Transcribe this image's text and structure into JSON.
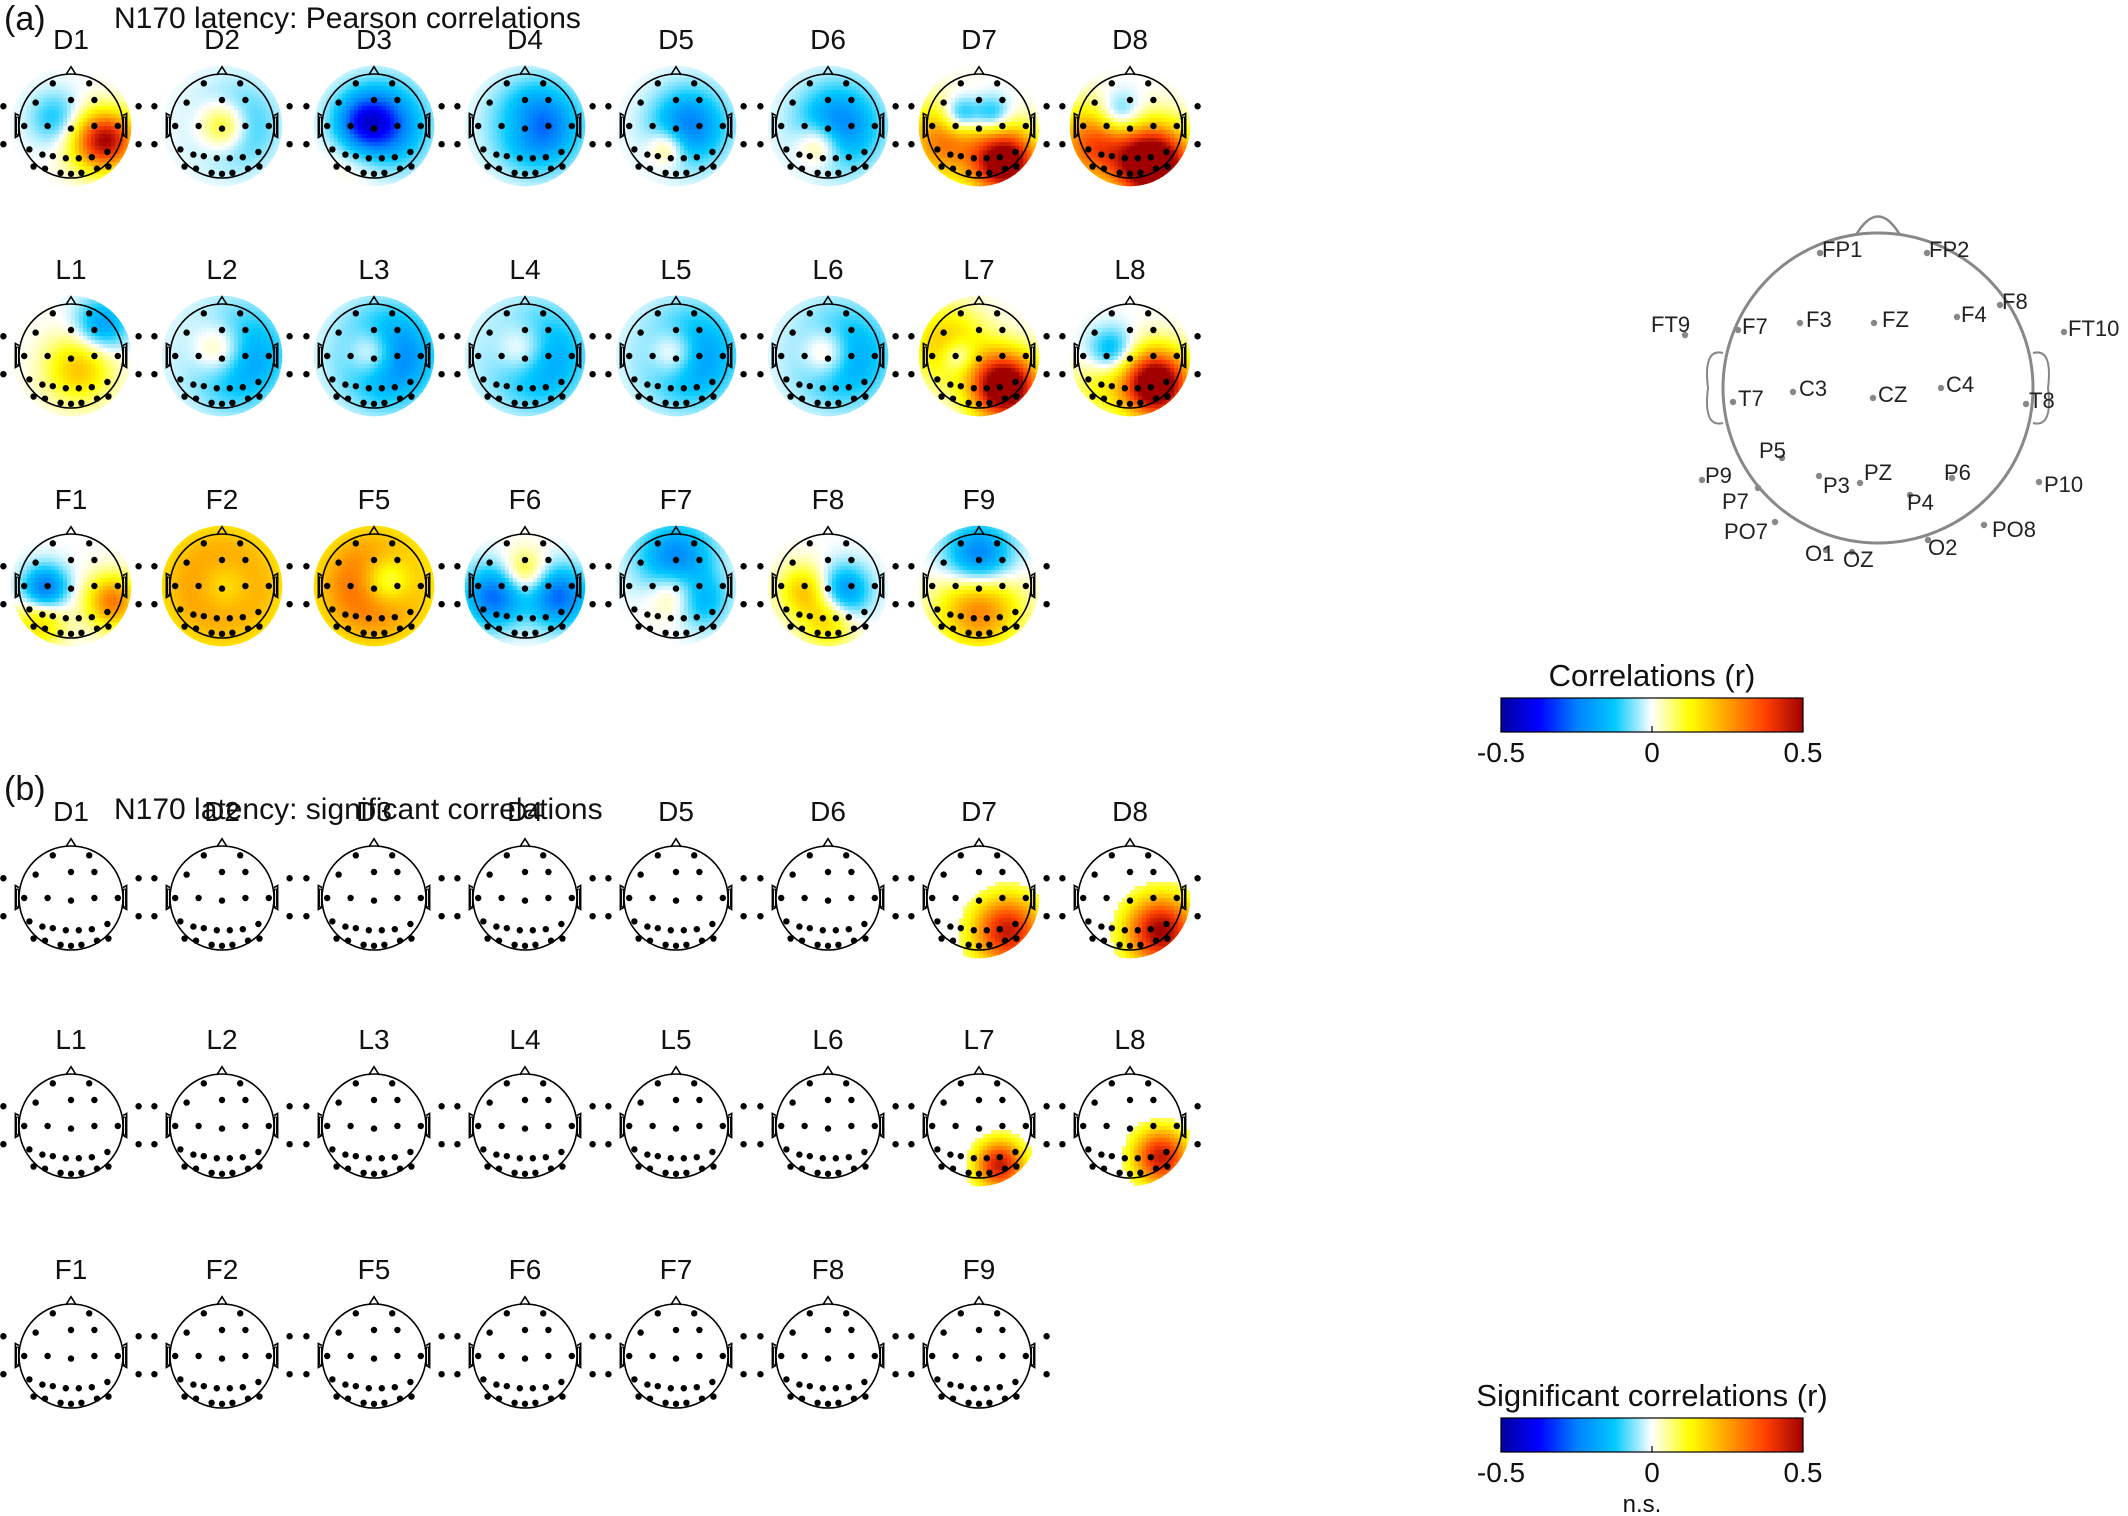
{
  "panel_a": {
    "letter": "(a)",
    "title": "N170 latency: Pearson correlations",
    "rows": [
      [
        "D1",
        "D2",
        "D3",
        "D4",
        "D5",
        "D6",
        "D7",
        "D8"
      ],
      [
        "L1",
        "L2",
        "L3",
        "L4",
        "L5",
        "L6",
        "L7",
        "L8"
      ],
      [
        "F1",
        "F2",
        "F5",
        "F6",
        "F7",
        "F8",
        "F9"
      ]
    ],
    "maps": {
      "D1": {
        "blobs": [
          [
            0.72,
            0.55,
            0.3,
            0.4
          ],
          [
            0.35,
            0.85,
            0.25,
            0.35
          ],
          [
            -0.25,
            -0.3,
            -0.15,
            0.35
          ]
        ]
      },
      "D2": {
        "blobs": [
          [
            0.6,
            0.05,
            0.0,
            0.35
          ],
          [
            -0.45,
            0.2,
            0.0,
            0.5
          ]
        ]
      },
      "D3": {
        "blobs": [
          [
            0.25,
            -0.25,
            0.35,
            0.45
          ],
          [
            -0.55,
            0.2,
            0.0,
            0.55
          ],
          [
            -0.6,
            -0.2,
            0.0,
            0.4
          ]
        ]
      },
      "D4": {
        "blobs": [
          [
            0.12,
            -0.1,
            0.0,
            0.3
          ],
          [
            -0.6,
            0.25,
            0.0,
            0.55
          ]
        ]
      },
      "D5": {
        "blobs": [
          [
            0.3,
            -0.15,
            0.4,
            0.25
          ],
          [
            -0.5,
            0.25,
            0.0,
            0.5
          ]
        ]
      },
      "D6": {
        "blobs": [
          [
            0.35,
            -0.15,
            0.35,
            0.3
          ],
          [
            -0.5,
            0.2,
            0.0,
            0.55
          ]
        ]
      },
      "D7": {
        "blobs": [
          [
            1.2,
            0.5,
            0.7,
            0.45
          ],
          [
            0.6,
            -0.7,
            0.3,
            0.5
          ],
          [
            -0.45,
            -0.35,
            -0.2,
            0.25
          ],
          [
            -0.35,
            0.25,
            -0.2,
            0.25
          ]
        ]
      },
      "D8": {
        "blobs": [
          [
            1.4,
            0.45,
            0.75,
            0.5
          ],
          [
            0.7,
            -0.7,
            0.35,
            0.5
          ],
          [
            -0.35,
            -0.2,
            -0.2,
            0.3
          ]
        ]
      },
      "L1": {
        "blobs": [
          [
            0.4,
            0.15,
            0.25,
            0.45
          ],
          [
            -0.4,
            0.6,
            -0.6,
            0.35
          ]
        ]
      },
      "L2": {
        "blobs": [
          [
            0.55,
            0.0,
            -0.1,
            0.4
          ],
          [
            -0.6,
            0.25,
            0.0,
            0.6
          ]
        ]
      },
      "L3": {
        "blobs": [
          [
            0.5,
            0.0,
            -0.05,
            0.35
          ],
          [
            -0.65,
            0.25,
            0.0,
            0.6
          ]
        ]
      },
      "L4": {
        "blobs": [
          [
            0.5,
            0.0,
            -0.1,
            0.4
          ],
          [
            -0.6,
            0.2,
            0.0,
            0.6
          ]
        ]
      },
      "L5": {
        "blobs": [
          [
            0.45,
            0.0,
            -0.05,
            0.35
          ],
          [
            -0.55,
            0.25,
            0.0,
            0.6
          ]
        ]
      },
      "L6": {
        "blobs": [
          [
            0.45,
            0.0,
            -0.05,
            0.35
          ],
          [
            -0.5,
            0.25,
            0.0,
            0.6
          ]
        ]
      },
      "L7": {
        "blobs": [
          [
            1.3,
            0.5,
            0.6,
            0.45
          ],
          [
            0.45,
            -0.6,
            -0.2,
            0.5
          ],
          [
            -0.35,
            -0.4,
            0.0,
            0.25
          ]
        ]
      },
      "L8": {
        "blobs": [
          [
            1.3,
            0.5,
            0.55,
            0.45
          ],
          [
            -0.35,
            -0.35,
            -0.1,
            0.3
          ],
          [
            0.2,
            -0.6,
            0.6,
            0.4
          ]
        ]
      },
      "F1": {
        "blobs": [
          [
            0.6,
            0.8,
            0.3,
            0.35
          ],
          [
            -0.55,
            -0.5,
            0.05,
            0.3
          ],
          [
            0.35,
            -0.6,
            0.7,
            0.35
          ]
        ]
      },
      "F2": {
        "blobs": [
          [
            0.7,
            0.0,
            0.0,
            0.95
          ],
          [
            -0.35,
            0.05,
            0.0,
            0.4
          ]
        ]
      },
      "F5": {
        "blobs": [
          [
            0.75,
            0.0,
            0.0,
            0.9
          ],
          [
            -0.5,
            0.25,
            -0.1,
            0.35
          ]
        ]
      },
      "F6": {
        "blobs": [
          [
            0.3,
            0.0,
            -0.25,
            0.3
          ],
          [
            -0.55,
            -0.6,
            0.2,
            0.4
          ],
          [
            -0.55,
            0.65,
            0.2,
            0.4
          ]
        ]
      },
      "F7": {
        "blobs": [
          [
            0.3,
            0.0,
            0.1,
            0.35
          ],
          [
            -0.5,
            0.0,
            -0.5,
            0.5
          ],
          [
            -0.3,
            0.5,
            0.3,
            0.35
          ]
        ]
      },
      "F8": {
        "blobs": [
          [
            0.4,
            -0.45,
            0.1,
            0.35
          ],
          [
            -0.45,
            0.3,
            0.1,
            0.35
          ],
          [
            0.35,
            0.0,
            0.7,
            0.35
          ]
        ]
      },
      "F9": {
        "blobs": [
          [
            0.6,
            0.0,
            0.45,
            0.55
          ],
          [
            -0.55,
            0.0,
            -0.55,
            0.45
          ]
        ]
      }
    },
    "colorbar": {
      "title": "Correlations (r)",
      "ticks": [
        "-0.5",
        "0",
        "0.5"
      ]
    },
    "layout_labels": [
      "FP1",
      "FP2",
      "F8",
      "FT9",
      "F7",
      "F3",
      "FZ",
      "F4",
      "FT10",
      "T7",
      "C3",
      "CZ",
      "C4",
      "T8",
      "P5",
      "P9",
      "P3",
      "PZ",
      "P6",
      "P10",
      "P7",
      "P4",
      "PO7",
      "PO8",
      "O1",
      "OZ",
      "O2"
    ]
  },
  "panel_b": {
    "letter": "(b)",
    "title": "N170 latency: significant correlations",
    "rows": [
      [
        "D1",
        "D2",
        "D3",
        "D4",
        "D5",
        "D6",
        "D7",
        "D8"
      ],
      [
        "L1",
        "L2",
        "L3",
        "L4",
        "L5",
        "L6",
        "L7",
        "L8"
      ],
      [
        "F1",
        "F2",
        "F5",
        "F6",
        "F7",
        "F8",
        "F9"
      ]
    ],
    "significant": {
      "D7": {
        "blobs": [
          [
            0.9,
            0.55,
            0.65,
            0.5
          ]
        ]
      },
      "D8": {
        "blobs": [
          [
            1.0,
            0.6,
            0.65,
            0.5
          ]
        ]
      },
      "L7": {
        "blobs": [
          [
            0.9,
            0.4,
            0.75,
            0.35
          ]
        ]
      },
      "L8": {
        "blobs": [
          [
            0.9,
            0.6,
            0.6,
            0.4
          ]
        ]
      }
    },
    "colorbar": {
      "title": "Significant correlations (r)",
      "ticks": [
        "-0.5",
        "0",
        "0.5"
      ],
      "ns_label": "n.s."
    }
  },
  "colors": {
    "colormap": [
      "#0000a0",
      "#0000ff",
      "#0080ff",
      "#00c8ff",
      "#ffffff",
      "#ffff00",
      "#ffa000",
      "#ff4000",
      "#a00000"
    ]
  }
}
